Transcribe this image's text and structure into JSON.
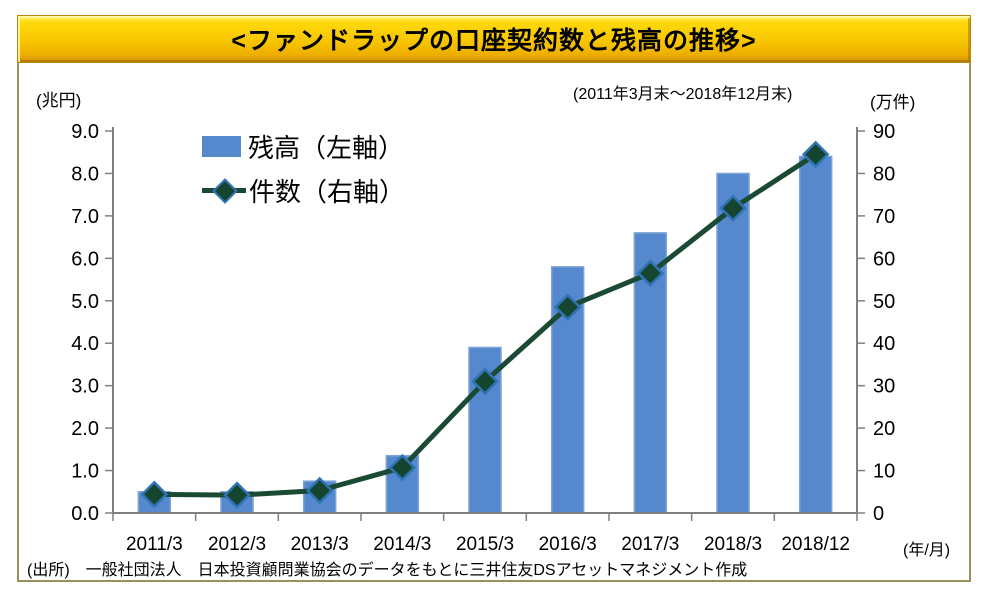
{
  "window": {
    "title": "<ファンドラップの口座契約数と残高の推移>"
  },
  "header": {
    "left_unit": "(兆円)",
    "period": "(2011年3月末～2018年12月末)",
    "right_unit": "(万件)"
  },
  "legend": {
    "balance_label": "残高（左軸）",
    "count_label": "件数（右軸）"
  },
  "x_axis_unit": "(年/月)",
  "footer": {
    "source": "(出所)　一般社団法人　日本投資顧問業協会のデータをもとに三井住友DSアセットマネジメント作成"
  },
  "colors": {
    "bar_fill": "#5588CD",
    "bar_border": "#7FA4DA",
    "line": "#1B4A34",
    "diamond_fill": "#15452E",
    "diamond_border": "#2E74B5",
    "axis": "#808080",
    "title_bar_gold": "#F7C400",
    "frame_border": "#99905C"
  },
  "chart_data": {
    "type": "bar+line",
    "title": "<ファンドラップの口座契約数と残高の推移>",
    "subtitle": "(2011年3月末～2018年12月末)",
    "grid": false,
    "legend_position": "top-left-inside",
    "categories": [
      "2011/3",
      "2012/3",
      "2013/3",
      "2014/3",
      "2015/3",
      "2016/3",
      "2017/3",
      "2018/3",
      "2018/12"
    ],
    "series": [
      {
        "name": "残高（左軸）",
        "type": "bar",
        "axis": "left",
        "unit": "兆円",
        "values": [
          0.5,
          0.5,
          0.75,
          1.35,
          3.9,
          5.8,
          6.6,
          8.0,
          8.4
        ]
      },
      {
        "name": "件数（右軸）",
        "type": "line",
        "axis": "right",
        "unit": "万件",
        "marker": "diamond",
        "values": [
          4.4,
          4.2,
          5.3,
          10.7,
          31,
          48.5,
          56.5,
          71.8,
          84.5
        ]
      }
    ],
    "left_axis": {
      "unit_label": "(兆円)",
      "min": 0,
      "max": 9,
      "ticks": [
        "0.0",
        "1.0",
        "2.0",
        "3.0",
        "4.0",
        "5.0",
        "6.0",
        "7.0",
        "8.0",
        "9.0"
      ]
    },
    "right_axis": {
      "unit_label": "(万件)",
      "min": 0,
      "max": 90,
      "ticks": [
        "0",
        "10",
        "20",
        "30",
        "40",
        "50",
        "60",
        "70",
        "80",
        "90"
      ]
    },
    "x_axis": {
      "unit_label": "(年/月)"
    }
  }
}
